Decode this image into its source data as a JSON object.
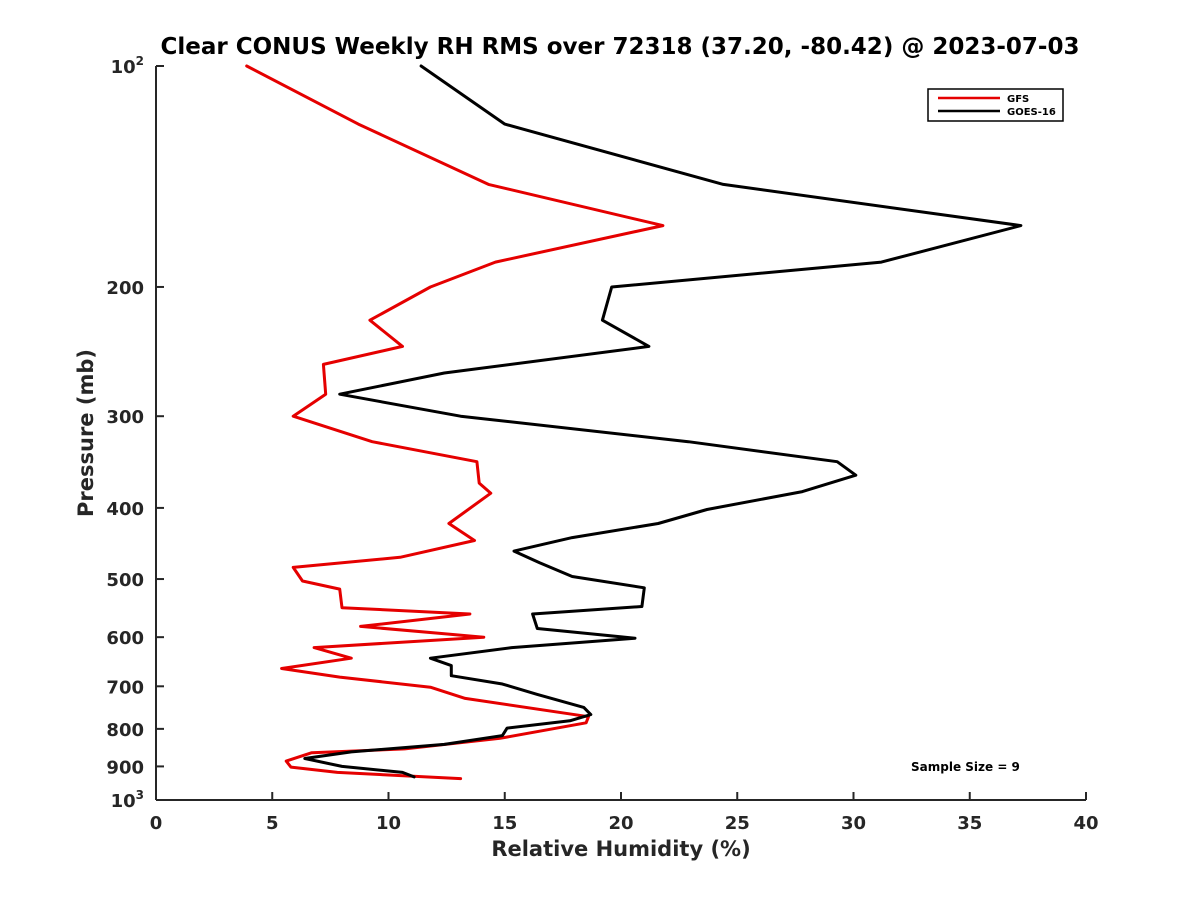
{
  "chart_data": {
    "type": "line",
    "title": "Clear CONUS Weekly RH RMS over 72318 (37.20, -80.42) @ 2023-07-03",
    "xlabel": "Relative Humidity (%)",
    "ylabel": "Pressure (mb)",
    "xlim": [
      0,
      40
    ],
    "ylim": [
      100,
      1000
    ],
    "y_scale": "log",
    "y_reversed": true,
    "grid": false,
    "legend_position": "top-right",
    "annotation": "Sample Size = 9",
    "x_ticks": [
      "0",
      "5",
      "10",
      "15",
      "20",
      "25",
      "30",
      "35",
      "40"
    ],
    "x_tick_values": [
      0,
      5,
      10,
      15,
      20,
      25,
      30,
      35,
      40
    ],
    "y_ticks": [
      {
        "value": 100,
        "base": "10",
        "exp": "2"
      },
      {
        "value": 200,
        "base": "200",
        "exp": ""
      },
      {
        "value": 300,
        "base": "300",
        "exp": ""
      },
      {
        "value": 400,
        "base": "400",
        "exp": ""
      },
      {
        "value": 500,
        "base": "500",
        "exp": ""
      },
      {
        "value": 600,
        "base": "600",
        "exp": ""
      },
      {
        "value": 700,
        "base": "700",
        "exp": ""
      },
      {
        "value": 800,
        "base": "800",
        "exp": ""
      },
      {
        "value": 900,
        "base": "900",
        "exp": ""
      },
      {
        "value": 1000,
        "base": "10",
        "exp": "3"
      }
    ],
    "series": [
      {
        "name": "GFS",
        "color": "#e50000",
        "points": [
          [
            3.9,
            100
          ],
          [
            8.7,
            120
          ],
          [
            14.3,
            145
          ],
          [
            21.8,
            165
          ],
          [
            14.6,
            185
          ],
          [
            11.8,
            200
          ],
          [
            9.2,
            222
          ],
          [
            10.6,
            241
          ],
          [
            7.2,
            255
          ],
          [
            7.3,
            280
          ],
          [
            5.9,
            300
          ],
          [
            9.3,
            325
          ],
          [
            13.8,
            346
          ],
          [
            13.9,
            370
          ],
          [
            14.4,
            382
          ],
          [
            12.6,
            420
          ],
          [
            13.7,
            443
          ],
          [
            10.5,
            467
          ],
          [
            5.9,
            482
          ],
          [
            6.3,
            503
          ],
          [
            7.9,
            516
          ],
          [
            8.0,
            547
          ],
          [
            13.5,
            558
          ],
          [
            8.8,
            580
          ],
          [
            14.1,
            600
          ],
          [
            6.8,
            620
          ],
          [
            8.4,
            641
          ],
          [
            5.4,
            662
          ],
          [
            7.9,
            680
          ],
          [
            11.8,
            702
          ],
          [
            13.3,
            727
          ],
          [
            18.6,
            770
          ],
          [
            18.5,
            785
          ],
          [
            14.8,
            824
          ],
          [
            10.7,
            852
          ],
          [
            6.7,
            862
          ],
          [
            5.6,
            885
          ],
          [
            5.8,
            902
          ],
          [
            7.8,
            917
          ],
          [
            13.1,
            935
          ]
        ]
      },
      {
        "name": "GOES-16",
        "color": "#000000",
        "points": [
          [
            11.4,
            100
          ],
          [
            15.0,
            120
          ],
          [
            24.4,
            145
          ],
          [
            37.2,
            165
          ],
          [
            31.2,
            185
          ],
          [
            19.6,
            200
          ],
          [
            19.2,
            222
          ],
          [
            21.2,
            241
          ],
          [
            12.4,
            262
          ],
          [
            7.9,
            280
          ],
          [
            13.1,
            300
          ],
          [
            22.9,
            325
          ],
          [
            29.3,
            346
          ],
          [
            30.1,
            361
          ],
          [
            27.8,
            380
          ],
          [
            23.7,
            402
          ],
          [
            21.6,
            420
          ],
          [
            17.9,
            439
          ],
          [
            15.4,
            458
          ],
          [
            16.5,
            475
          ],
          [
            17.9,
            496
          ],
          [
            21.0,
            514
          ],
          [
            20.9,
            545
          ],
          [
            16.2,
            558
          ],
          [
            16.4,
            584
          ],
          [
            20.6,
            602
          ],
          [
            15.3,
            620
          ],
          [
            11.8,
            641
          ],
          [
            12.7,
            656
          ],
          [
            12.7,
            677
          ],
          [
            14.9,
            695
          ],
          [
            16.4,
            718
          ],
          [
            18.4,
            748
          ],
          [
            18.7,
            765
          ],
          [
            17.8,
            780
          ],
          [
            15.1,
            798
          ],
          [
            14.9,
            817
          ],
          [
            12.4,
            840
          ],
          [
            8.4,
            860
          ],
          [
            6.4,
            878
          ],
          [
            8.0,
            900
          ],
          [
            10.6,
            917
          ],
          [
            11.1,
            930
          ]
        ]
      }
    ]
  }
}
